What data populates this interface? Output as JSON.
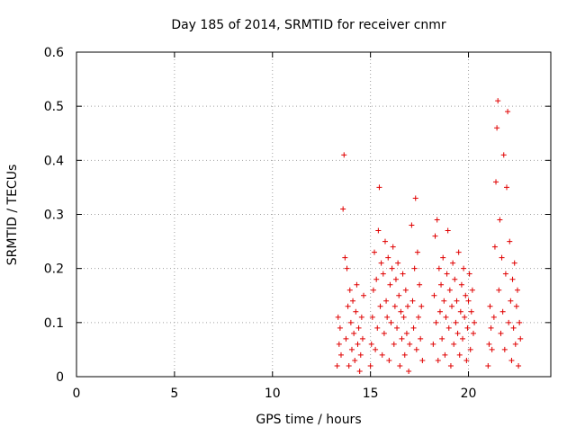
{
  "chart_data": {
    "type": "scatter",
    "title": "Day 185 of 2014, SRMTID for receiver cnmr",
    "xlabel": "GPS time / hours",
    "ylabel": "SRMTID / TECUs",
    "xlim": [
      0,
      24.2
    ],
    "ylim": [
      0,
      0.6
    ],
    "x_ticks": [
      0,
      5,
      10,
      15,
      20
    ],
    "x_tick_labels": [
      "0",
      "5",
      "10",
      "15",
      "20"
    ],
    "y_ticks": [
      0,
      0.1,
      0.2,
      0.3,
      0.4,
      0.5,
      0.6
    ],
    "y_tick_labels": [
      "0",
      "0.1",
      "0.2",
      "0.3",
      "0.4",
      "0.5",
      "0.6"
    ],
    "grid": true,
    "marker": "+",
    "marker_color": "#e00000",
    "series": [
      {
        "points": [
          [
            13.3,
            0.02
          ],
          [
            13.35,
            0.11
          ],
          [
            13.4,
            0.06
          ],
          [
            13.45,
            0.09
          ],
          [
            13.5,
            0.04
          ],
          [
            13.6,
            0.31
          ],
          [
            13.65,
            0.41
          ],
          [
            13.7,
            0.22
          ],
          [
            13.75,
            0.07
          ],
          [
            13.8,
            0.2
          ],
          [
            13.85,
            0.13
          ],
          [
            13.9,
            0.02
          ],
          [
            13.95,
            0.16
          ],
          [
            14.0,
            0.1
          ],
          [
            14.05,
            0.05
          ],
          [
            14.1,
            0.14
          ],
          [
            14.15,
            0.08
          ],
          [
            14.2,
            0.03
          ],
          [
            14.25,
            0.12
          ],
          [
            14.3,
            0.17
          ],
          [
            14.35,
            0.06
          ],
          [
            14.4,
            0.09
          ],
          [
            14.45,
            0.01
          ],
          [
            14.5,
            0.04
          ],
          [
            14.55,
            0.11
          ],
          [
            14.6,
            0.07
          ],
          [
            14.65,
            0.15
          ],
          [
            15.0,
            0.02
          ],
          [
            15.05,
            0.06
          ],
          [
            15.1,
            0.11
          ],
          [
            15.15,
            0.16
          ],
          [
            15.2,
            0.23
          ],
          [
            15.25,
            0.05
          ],
          [
            15.3,
            0.18
          ],
          [
            15.35,
            0.09
          ],
          [
            15.4,
            0.27
          ],
          [
            15.45,
            0.35
          ],
          [
            15.5,
            0.13
          ],
          [
            15.55,
            0.21
          ],
          [
            15.6,
            0.04
          ],
          [
            15.65,
            0.19
          ],
          [
            15.7,
            0.08
          ],
          [
            15.75,
            0.25
          ],
          [
            15.8,
            0.14
          ],
          [
            15.85,
            0.11
          ],
          [
            15.9,
            0.22
          ],
          [
            15.95,
            0.03
          ],
          [
            16.0,
            0.17
          ],
          [
            16.05,
            0.1
          ],
          [
            16.1,
            0.2
          ],
          [
            16.15,
            0.24
          ],
          [
            16.2,
            0.06
          ],
          [
            16.25,
            0.13
          ],
          [
            16.3,
            0.18
          ],
          [
            16.35,
            0.09
          ],
          [
            16.4,
            0.21
          ],
          [
            16.45,
            0.15
          ],
          [
            16.5,
            0.02
          ],
          [
            16.55,
            0.12
          ],
          [
            16.6,
            0.07
          ],
          [
            16.65,
            0.19
          ],
          [
            16.7,
            0.11
          ],
          [
            16.75,
            0.04
          ],
          [
            16.8,
            0.16
          ],
          [
            16.85,
            0.08
          ],
          [
            16.9,
            0.13
          ],
          [
            16.95,
            0.01
          ],
          [
            17.0,
            0.06
          ],
          [
            17.1,
            0.28
          ],
          [
            17.15,
            0.14
          ],
          [
            17.2,
            0.09
          ],
          [
            17.25,
            0.2
          ],
          [
            17.3,
            0.33
          ],
          [
            17.35,
            0.05
          ],
          [
            17.4,
            0.23
          ],
          [
            17.45,
            0.11
          ],
          [
            17.5,
            0.17
          ],
          [
            17.55,
            0.07
          ],
          [
            17.6,
            0.13
          ],
          [
            17.65,
            0.03
          ],
          [
            18.2,
            0.06
          ],
          [
            18.25,
            0.15
          ],
          [
            18.3,
            0.26
          ],
          [
            18.35,
            0.1
          ],
          [
            18.4,
            0.29
          ],
          [
            18.45,
            0.03
          ],
          [
            18.5,
            0.2
          ],
          [
            18.55,
            0.12
          ],
          [
            18.6,
            0.17
          ],
          [
            18.65,
            0.07
          ],
          [
            18.7,
            0.22
          ],
          [
            18.75,
            0.14
          ],
          [
            18.8,
            0.04
          ],
          [
            18.85,
            0.11
          ],
          [
            18.9,
            0.19
          ],
          [
            18.95,
            0.27
          ],
          [
            19.0,
            0.09
          ],
          [
            19.05,
            0.16
          ],
          [
            19.1,
            0.02
          ],
          [
            19.15,
            0.13
          ],
          [
            19.2,
            0.21
          ],
          [
            19.25,
            0.06
          ],
          [
            19.3,
            0.18
          ],
          [
            19.35,
            0.1
          ],
          [
            19.4,
            0.14
          ],
          [
            19.45,
            0.08
          ],
          [
            19.5,
            0.23
          ],
          [
            19.55,
            0.04
          ],
          [
            19.6,
            0.12
          ],
          [
            19.65,
            0.17
          ],
          [
            19.7,
            0.07
          ],
          [
            19.75,
            0.2
          ],
          [
            19.8,
            0.11
          ],
          [
            19.85,
            0.15
          ],
          [
            19.9,
            0.03
          ],
          [
            19.95,
            0.09
          ],
          [
            20.0,
            0.14
          ],
          [
            20.05,
            0.19
          ],
          [
            20.1,
            0.05
          ],
          [
            20.15,
            0.12
          ],
          [
            20.2,
            0.16
          ],
          [
            20.25,
            0.08
          ],
          [
            20.3,
            0.1
          ],
          [
            21.0,
            0.02
          ],
          [
            21.05,
            0.06
          ],
          [
            21.1,
            0.13
          ],
          [
            21.15,
            0.09
          ],
          [
            21.2,
            0.05
          ],
          [
            21.3,
            0.11
          ],
          [
            21.35,
            0.24
          ],
          [
            21.4,
            0.36
          ],
          [
            21.45,
            0.46
          ],
          [
            21.5,
            0.51
          ],
          [
            21.55,
            0.16
          ],
          [
            21.6,
            0.29
          ],
          [
            21.65,
            0.08
          ],
          [
            21.7,
            0.22
          ],
          [
            21.75,
            0.12
          ],
          [
            21.8,
            0.41
          ],
          [
            21.85,
            0.05
          ],
          [
            21.9,
            0.19
          ],
          [
            21.95,
            0.35
          ],
          [
            22.0,
            0.49
          ],
          [
            22.05,
            0.1
          ],
          [
            22.1,
            0.25
          ],
          [
            22.15,
            0.14
          ],
          [
            22.2,
            0.03
          ],
          [
            22.25,
            0.18
          ],
          [
            22.3,
            0.09
          ],
          [
            22.35,
            0.21
          ],
          [
            22.4,
            0.06
          ],
          [
            22.45,
            0.13
          ],
          [
            22.5,
            0.16
          ],
          [
            22.55,
            0.02
          ],
          [
            22.6,
            0.1
          ],
          [
            22.65,
            0.07
          ]
        ]
      }
    ]
  }
}
